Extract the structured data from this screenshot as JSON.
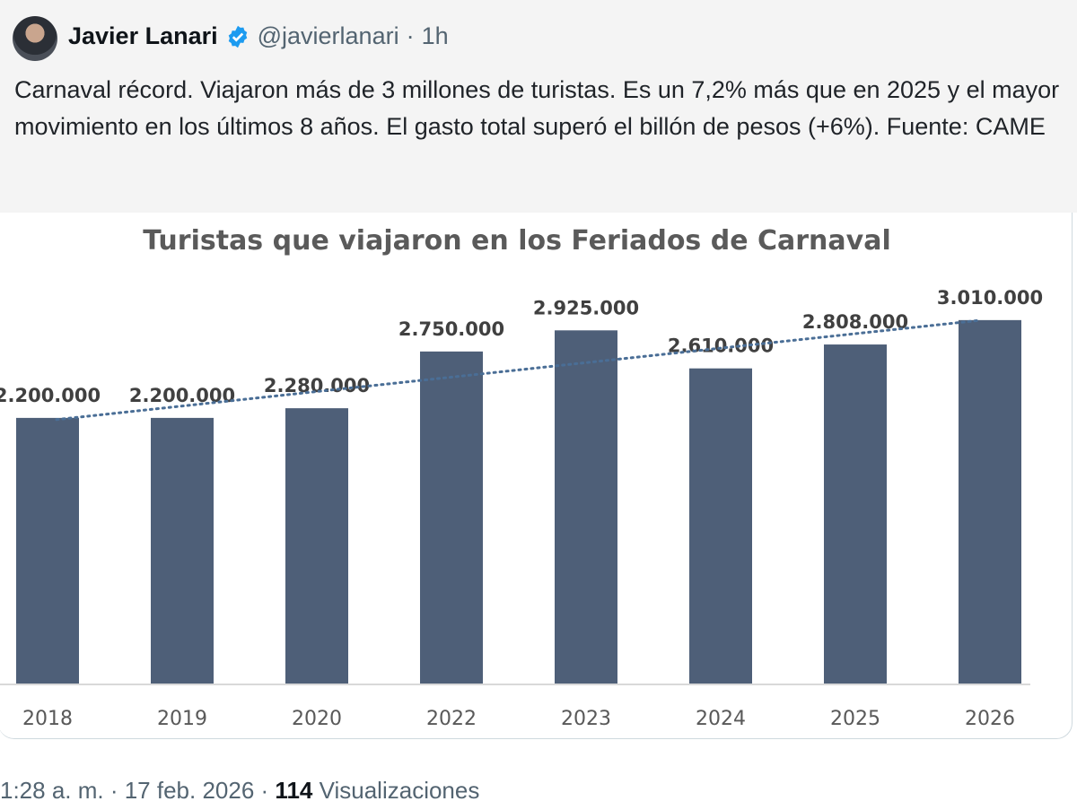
{
  "tweet": {
    "author_name": "Javier Lanari",
    "handle": "@javierlanari",
    "separator": "·",
    "time_ago": "1h",
    "text": "Carnaval récord. Viajaron más de 3 millones de turistas. Es un 7,2% más que en 2025 y el mayor movimiento en los últimos 8 años. El gasto total superó el billón de pesos (+6%). Fuente: CAME",
    "timestamp": "1:28 a. m. · 17 feb. 2026 ·",
    "views_count": "114",
    "views_label": "Visualizaciones",
    "verified_color": "#1d9bf0"
  },
  "chart_data": {
    "type": "bar",
    "title": "Turistas que viajaron en los Feriados de Carnaval",
    "categories": [
      "2018",
      "2019",
      "2020",
      "2022",
      "2023",
      "2024",
      "2025",
      "2026"
    ],
    "values": [
      2200000,
      2200000,
      2280000,
      2750000,
      2925000,
      2610000,
      2808000,
      3010000
    ],
    "labels": [
      "2.200.000",
      "2.200.000",
      "2.280.000",
      "2.750.000",
      "2.925.000",
      "2.610.000",
      "2.808.000",
      "3.010.000"
    ],
    "trendline": "linear, dotted",
    "ylim": [
      0,
      3300000
    ],
    "bar_color": "#4e5f78",
    "trend_color": "#4a6e96",
    "xlabel": "",
    "ylabel": ""
  }
}
